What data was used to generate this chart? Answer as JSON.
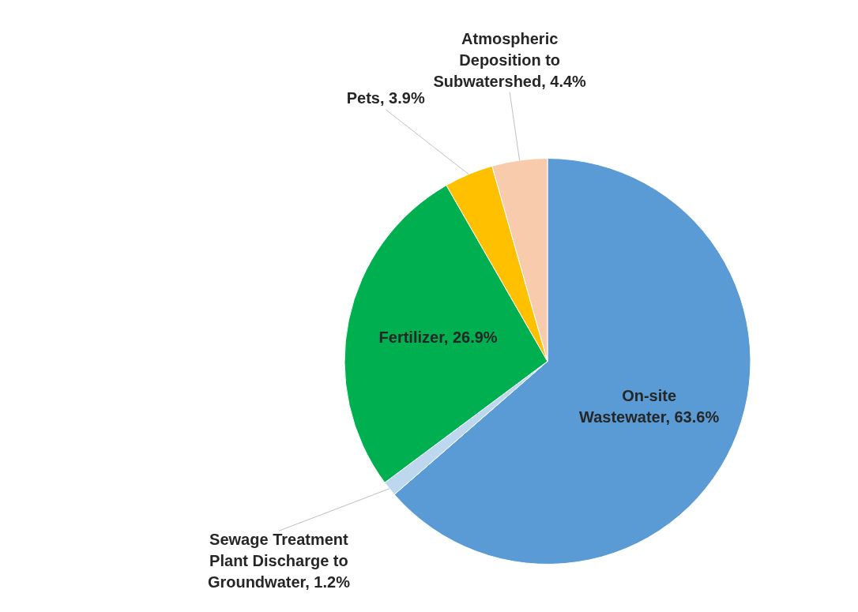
{
  "chart_data": {
    "type": "pie",
    "categories": [
      "On-site Wastewater",
      "Sewage Treatment Plant Discharge to Groundwater",
      "Fertilizer",
      "Pets",
      "Atmospheric Deposition to Subwatershed"
    ],
    "values": [
      63.6,
      1.2,
      26.9,
      3.9,
      4.4
    ],
    "colors": [
      "#5b9bd5",
      "#bdd7ee",
      "#00b050",
      "#ffc000",
      "#f8cbad"
    ],
    "value_labels": [
      "63.6%",
      "1.2%",
      "26.9%",
      "3.9%",
      "4.4%"
    ],
    "legend": false
  }
}
